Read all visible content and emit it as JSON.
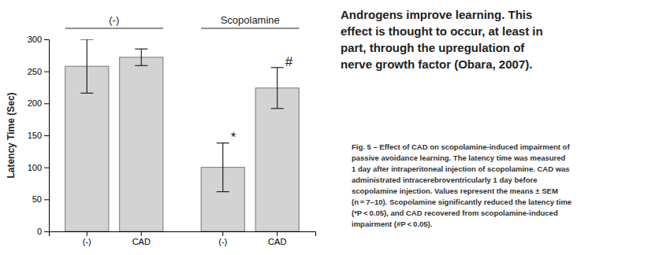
{
  "chart_data": {
    "type": "bar",
    "categories": [
      "(-)",
      "CAD",
      "(-)",
      "CAD"
    ],
    "values": [
      258,
      272,
      100,
      224
    ],
    "errors": [
      42,
      13,
      38,
      32
    ],
    "groups": [
      "(-)",
      "(-)",
      "Scopolamine",
      "Scopolamine"
    ],
    "annotations": [
      null,
      null,
      "*",
      "#"
    ],
    "color": "#d3d3d3",
    "ylabel": "Latency Time (Sec)",
    "ylim": [
      0,
      300
    ],
    "yticks": [
      0,
      50,
      100,
      150,
      200,
      250,
      300
    ],
    "grid": false,
    "title": [
      "Androgens improve learning. This",
      "effect is thought to occur, at least in",
      "part, through the upregulation of",
      "nerve growth factor (Obara, 2007)."
    ],
    "caption": [
      "Fig. 5 – Effect of CAD on scopolamine-induced impairment of",
      "passive avoidance learning. The latency time was measured",
      "1 day after intraperitoneal injection of scopolamine. CAD was",
      "administrated intracerebroventricularly 1 day before",
      "scopolamine injection. Values represent the means ± SEM",
      "(n = 7–10). Scopolamine significantly reduced the latency time",
      "(*P < 0.05), and CAD recovered from scopolamine-induced",
      "impairment (#P < 0.05)."
    ]
  }
}
